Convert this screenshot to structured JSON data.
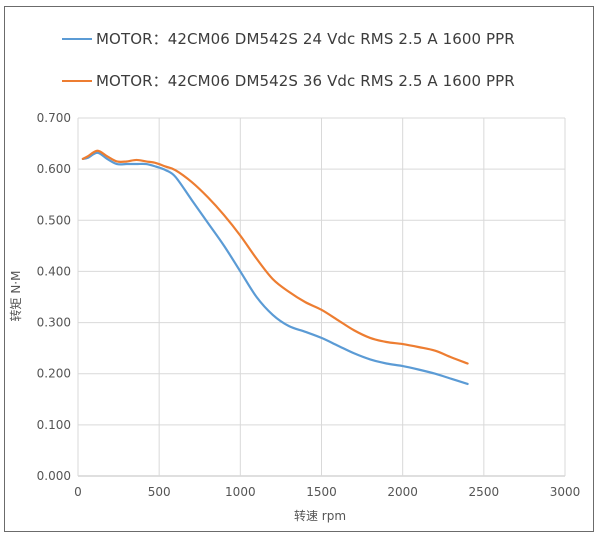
{
  "chart_data": {
    "type": "line",
    "title": "",
    "xlabel": "转速 rpm",
    "ylabel": "转矩 N·M",
    "xlim": [
      0,
      3000
    ],
    "ylim": [
      0,
      0.7
    ],
    "xticks": [
      "0",
      "500",
      "1000",
      "1500",
      "2000",
      "2500",
      "3000"
    ],
    "yticks": [
      "0.000",
      "0.100",
      "0.200",
      "0.300",
      "0.400",
      "0.500",
      "0.600",
      "0.700"
    ],
    "xtick_values": [
      0,
      500,
      1000,
      1500,
      2000,
      2500,
      3000
    ],
    "ytick_values": [
      0,
      0.1,
      0.2,
      0.3,
      0.4,
      0.5,
      0.6,
      0.7
    ],
    "grid": true,
    "legend_position": "top",
    "series": [
      {
        "name": "MOTOR：42CM06  DM542S 24 Vdc  RMS 2.5 A  1600 PPR",
        "color": "#5b9bd5",
        "x": [
          30,
          60,
          120,
          180,
          240,
          300,
          360,
          420,
          480,
          540,
          600,
          700,
          800,
          900,
          1000,
          1100,
          1200,
          1300,
          1400,
          1500,
          1600,
          1700,
          1800,
          1900,
          2000,
          2100,
          2200,
          2300,
          2400
        ],
        "y": [
          0.62,
          0.622,
          0.632,
          0.62,
          0.61,
          0.61,
          0.61,
          0.61,
          0.605,
          0.598,
          0.585,
          0.54,
          0.495,
          0.45,
          0.4,
          0.35,
          0.315,
          0.293,
          0.282,
          0.27,
          0.255,
          0.24,
          0.228,
          0.22,
          0.215,
          0.208,
          0.2,
          0.19,
          0.18
        ]
      },
      {
        "name": "MOTOR：42CM06  DM542S 36 Vdc  RMS 2.5 A  1600 PPR",
        "color": "#ed7d31",
        "x": [
          30,
          60,
          120,
          180,
          240,
          300,
          360,
          420,
          480,
          540,
          600,
          700,
          800,
          900,
          1000,
          1100,
          1200,
          1300,
          1400,
          1500,
          1600,
          1700,
          1800,
          1900,
          2000,
          2100,
          2200,
          2300,
          2400
        ],
        "y": [
          0.62,
          0.625,
          0.636,
          0.625,
          0.615,
          0.615,
          0.618,
          0.615,
          0.612,
          0.605,
          0.598,
          0.575,
          0.545,
          0.51,
          0.47,
          0.425,
          0.385,
          0.36,
          0.34,
          0.325,
          0.305,
          0.285,
          0.27,
          0.262,
          0.258,
          0.252,
          0.245,
          0.232,
          0.22
        ]
      }
    ]
  }
}
